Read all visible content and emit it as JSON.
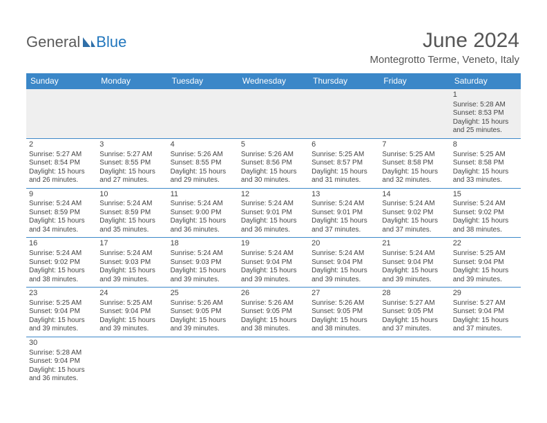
{
  "brand": {
    "part1": "General",
    "part2": "Blue"
  },
  "title": "June 2024",
  "location": "Montegrotto Terme, Veneto, Italy",
  "colors": {
    "header_bg": "#3b87c8",
    "header_text": "#ffffff",
    "rule": "#3b87c8",
    "empty_bg": "#efefef",
    "text": "#444444",
    "logo_gray": "#5a5a5a",
    "logo_blue": "#2176bd"
  },
  "weekdays": [
    "Sunday",
    "Monday",
    "Tuesday",
    "Wednesday",
    "Thursday",
    "Friday",
    "Saturday"
  ],
  "weeks": [
    [
      null,
      null,
      null,
      null,
      null,
      null,
      {
        "n": "1",
        "sr": "Sunrise: 5:28 AM",
        "ss": "Sunset: 8:53 PM",
        "d1": "Daylight: 15 hours",
        "d2": "and 25 minutes."
      }
    ],
    [
      {
        "n": "2",
        "sr": "Sunrise: 5:27 AM",
        "ss": "Sunset: 8:54 PM",
        "d1": "Daylight: 15 hours",
        "d2": "and 26 minutes."
      },
      {
        "n": "3",
        "sr": "Sunrise: 5:27 AM",
        "ss": "Sunset: 8:55 PM",
        "d1": "Daylight: 15 hours",
        "d2": "and 27 minutes."
      },
      {
        "n": "4",
        "sr": "Sunrise: 5:26 AM",
        "ss": "Sunset: 8:55 PM",
        "d1": "Daylight: 15 hours",
        "d2": "and 29 minutes."
      },
      {
        "n": "5",
        "sr": "Sunrise: 5:26 AM",
        "ss": "Sunset: 8:56 PM",
        "d1": "Daylight: 15 hours",
        "d2": "and 30 minutes."
      },
      {
        "n": "6",
        "sr": "Sunrise: 5:25 AM",
        "ss": "Sunset: 8:57 PM",
        "d1": "Daylight: 15 hours",
        "d2": "and 31 minutes."
      },
      {
        "n": "7",
        "sr": "Sunrise: 5:25 AM",
        "ss": "Sunset: 8:58 PM",
        "d1": "Daylight: 15 hours",
        "d2": "and 32 minutes."
      },
      {
        "n": "8",
        "sr": "Sunrise: 5:25 AM",
        "ss": "Sunset: 8:58 PM",
        "d1": "Daylight: 15 hours",
        "d2": "and 33 minutes."
      }
    ],
    [
      {
        "n": "9",
        "sr": "Sunrise: 5:24 AM",
        "ss": "Sunset: 8:59 PM",
        "d1": "Daylight: 15 hours",
        "d2": "and 34 minutes."
      },
      {
        "n": "10",
        "sr": "Sunrise: 5:24 AM",
        "ss": "Sunset: 8:59 PM",
        "d1": "Daylight: 15 hours",
        "d2": "and 35 minutes."
      },
      {
        "n": "11",
        "sr": "Sunrise: 5:24 AM",
        "ss": "Sunset: 9:00 PM",
        "d1": "Daylight: 15 hours",
        "d2": "and 36 minutes."
      },
      {
        "n": "12",
        "sr": "Sunrise: 5:24 AM",
        "ss": "Sunset: 9:01 PM",
        "d1": "Daylight: 15 hours",
        "d2": "and 36 minutes."
      },
      {
        "n": "13",
        "sr": "Sunrise: 5:24 AM",
        "ss": "Sunset: 9:01 PM",
        "d1": "Daylight: 15 hours",
        "d2": "and 37 minutes."
      },
      {
        "n": "14",
        "sr": "Sunrise: 5:24 AM",
        "ss": "Sunset: 9:02 PM",
        "d1": "Daylight: 15 hours",
        "d2": "and 37 minutes."
      },
      {
        "n": "15",
        "sr": "Sunrise: 5:24 AM",
        "ss": "Sunset: 9:02 PM",
        "d1": "Daylight: 15 hours",
        "d2": "and 38 minutes."
      }
    ],
    [
      {
        "n": "16",
        "sr": "Sunrise: 5:24 AM",
        "ss": "Sunset: 9:02 PM",
        "d1": "Daylight: 15 hours",
        "d2": "and 38 minutes."
      },
      {
        "n": "17",
        "sr": "Sunrise: 5:24 AM",
        "ss": "Sunset: 9:03 PM",
        "d1": "Daylight: 15 hours",
        "d2": "and 39 minutes."
      },
      {
        "n": "18",
        "sr": "Sunrise: 5:24 AM",
        "ss": "Sunset: 9:03 PM",
        "d1": "Daylight: 15 hours",
        "d2": "and 39 minutes."
      },
      {
        "n": "19",
        "sr": "Sunrise: 5:24 AM",
        "ss": "Sunset: 9:04 PM",
        "d1": "Daylight: 15 hours",
        "d2": "and 39 minutes."
      },
      {
        "n": "20",
        "sr": "Sunrise: 5:24 AM",
        "ss": "Sunset: 9:04 PM",
        "d1": "Daylight: 15 hours",
        "d2": "and 39 minutes."
      },
      {
        "n": "21",
        "sr": "Sunrise: 5:24 AM",
        "ss": "Sunset: 9:04 PM",
        "d1": "Daylight: 15 hours",
        "d2": "and 39 minutes."
      },
      {
        "n": "22",
        "sr": "Sunrise: 5:25 AM",
        "ss": "Sunset: 9:04 PM",
        "d1": "Daylight: 15 hours",
        "d2": "and 39 minutes."
      }
    ],
    [
      {
        "n": "23",
        "sr": "Sunrise: 5:25 AM",
        "ss": "Sunset: 9:04 PM",
        "d1": "Daylight: 15 hours",
        "d2": "and 39 minutes."
      },
      {
        "n": "24",
        "sr": "Sunrise: 5:25 AM",
        "ss": "Sunset: 9:04 PM",
        "d1": "Daylight: 15 hours",
        "d2": "and 39 minutes."
      },
      {
        "n": "25",
        "sr": "Sunrise: 5:26 AM",
        "ss": "Sunset: 9:05 PM",
        "d1": "Daylight: 15 hours",
        "d2": "and 39 minutes."
      },
      {
        "n": "26",
        "sr": "Sunrise: 5:26 AM",
        "ss": "Sunset: 9:05 PM",
        "d1": "Daylight: 15 hours",
        "d2": "and 38 minutes."
      },
      {
        "n": "27",
        "sr": "Sunrise: 5:26 AM",
        "ss": "Sunset: 9:05 PM",
        "d1": "Daylight: 15 hours",
        "d2": "and 38 minutes."
      },
      {
        "n": "28",
        "sr": "Sunrise: 5:27 AM",
        "ss": "Sunset: 9:05 PM",
        "d1": "Daylight: 15 hours",
        "d2": "and 37 minutes."
      },
      {
        "n": "29",
        "sr": "Sunrise: 5:27 AM",
        "ss": "Sunset: 9:04 PM",
        "d1": "Daylight: 15 hours",
        "d2": "and 37 minutes."
      }
    ],
    [
      {
        "n": "30",
        "sr": "Sunrise: 5:28 AM",
        "ss": "Sunset: 9:04 PM",
        "d1": "Daylight: 15 hours",
        "d2": "and 36 minutes."
      },
      null,
      null,
      null,
      null,
      null,
      null
    ]
  ]
}
